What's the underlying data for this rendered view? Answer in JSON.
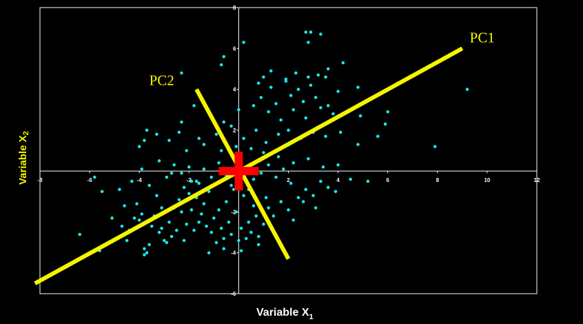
{
  "chart_data": {
    "type": "scatter",
    "title": "",
    "xlabel": {
      "text": "Variable X",
      "sub": "1"
    },
    "ylabel": {
      "text": "Variable X",
      "sub": "2"
    },
    "xlim": [
      -8,
      12
    ],
    "ylim": [
      -6,
      8
    ],
    "xticks": [
      "-8",
      "-6",
      "-4",
      "-2",
      "0",
      "2",
      "4",
      "6",
      "8",
      "10",
      "12"
    ],
    "yticks": [
      "-6",
      "-4",
      "-2",
      "2",
      "4",
      "6",
      "8"
    ],
    "grid": false,
    "colors": {
      "background": "#000000",
      "axes": "#ffffff",
      "points": "#19e6e6",
      "pc_lines": "#f5f500",
      "center_cross": "#ff0000",
      "xlabel": "#ffffff",
      "ylabel": "#f5f500"
    },
    "annotations": [
      {
        "label": "PC1",
        "line": [
          [
            -8.2,
            -5.5
          ],
          [
            9.0,
            6.0
          ]
        ],
        "label_at": [
          9.3,
          6.3
        ]
      },
      {
        "label": "PC2",
        "line": [
          [
            -1.7,
            4.0
          ],
          [
            2.0,
            -4.3
          ]
        ],
        "label_at": [
          -3.6,
          4.2
        ]
      }
    ],
    "center_cross": {
      "x": 0,
      "y": 0
    },
    "points": [
      [
        -6.4,
        -3.1
      ],
      [
        -5.6,
        -3.9
      ],
      [
        -5.5,
        -1.0
      ],
      [
        -4.6,
        -1.7
      ],
      [
        -4.4,
        -2.9
      ],
      [
        -4.2,
        -2.3
      ],
      [
        -4.1,
        -1.6
      ],
      [
        -4.0,
        -2.4
      ],
      [
        -3.9,
        -2.1
      ],
      [
        -3.8,
        -3.8
      ],
      [
        -3.8,
        -4.1
      ],
      [
        -3.7,
        -4.0
      ],
      [
        -3.6,
        -3.6
      ],
      [
        -3.5,
        -2.7
      ],
      [
        -3.4,
        -2.2
      ],
      [
        -3.3,
        -1.2
      ],
      [
        -3.1,
        -2.8
      ],
      [
        -3.0,
        -3.4
      ],
      [
        -2.9,
        -3.5
      ],
      [
        -2.8,
        -2.5
      ],
      [
        -2.7,
        -3.2
      ],
      [
        -2.6,
        -1.8
      ],
      [
        -2.5,
        -2.9
      ],
      [
        -2.4,
        -1.4
      ],
      [
        -2.3,
        -2.0
      ],
      [
        -2.2,
        -0.8
      ],
      [
        -2.1,
        -2.6
      ],
      [
        -2.0,
        -1.1
      ],
      [
        -1.9,
        -1.9
      ],
      [
        -1.8,
        -2.9
      ],
      [
        -1.7,
        -1.3
      ],
      [
        -1.6,
        -0.6
      ],
      [
        -1.5,
        -2.1
      ],
      [
        -1.4,
        -1.6
      ],
      [
        -1.3,
        -2.7
      ],
      [
        -1.2,
        -1.0
      ],
      [
        -1.1,
        -3.0
      ],
      [
        -1.0,
        -2.3
      ],
      [
        -0.9,
        -3.5
      ],
      [
        -0.8,
        -1.9
      ],
      [
        -0.7,
        -2.8
      ],
      [
        -0.6,
        -3.3
      ],
      [
        -0.5,
        -1.5
      ],
      [
        -0.4,
        -2.5
      ],
      [
        -0.3,
        -3.1
      ],
      [
        -0.2,
        -0.9
      ],
      [
        -0.1,
        -2.0
      ],
      [
        0.0,
        -3.4
      ],
      [
        0.1,
        -2.8
      ],
      [
        0.2,
        -1.2
      ],
      [
        0.3,
        -3.3
      ],
      [
        0.4,
        -2.5
      ],
      [
        0.5,
        -3.0
      ],
      [
        0.6,
        -1.7
      ],
      [
        0.7,
        -2.2
      ],
      [
        0.8,
        -3.2
      ],
      [
        1.0,
        -2.6
      ],
      [
        1.1,
        -1.3
      ],
      [
        1.2,
        -1.8
      ],
      [
        1.4,
        -2.2
      ],
      [
        -5.8,
        -0.3
      ],
      [
        -4.8,
        -0.9
      ],
      [
        -4.3,
        -0.5
      ],
      [
        -3.9,
        0.1
      ],
      [
        -3.6,
        -0.7
      ],
      [
        -3.2,
        0.5
      ],
      [
        -2.9,
        -0.3
      ],
      [
        -2.6,
        0.3
      ],
      [
        -2.3,
        -0.1
      ],
      [
        -2.0,
        0.2
      ],
      [
        -1.7,
        -0.5
      ],
      [
        -1.4,
        0.1
      ],
      [
        -1.1,
        -0.3
      ],
      [
        -0.8,
        0.4
      ],
      [
        -0.5,
        -0.2
      ],
      [
        -0.2,
        0.6
      ],
      [
        0.3,
        0.2
      ],
      [
        0.6,
        -0.4
      ],
      [
        0.9,
        -0.1
      ],
      [
        1.2,
        0.3
      ],
      [
        1.5,
        -0.3
      ],
      [
        1.8,
        0.1
      ],
      [
        2.1,
        -0.6
      ],
      [
        2.4,
        -1.3
      ],
      [
        2.7,
        -0.9
      ],
      [
        3.0,
        -1.2
      ],
      [
        3.3,
        -0.5
      ],
      [
        3.6,
        -0.8
      ],
      [
        3.9,
        -1.0
      ],
      [
        4.5,
        -0.4
      ],
      [
        5.2,
        -0.5
      ],
      [
        4.0,
        0.3
      ],
      [
        3.4,
        0.2
      ],
      [
        2.8,
        0.6
      ],
      [
        2.2,
        0.4
      ],
      [
        1.6,
        0.7
      ],
      [
        1.0,
        0.9
      ],
      [
        0.5,
        1.1
      ],
      [
        -0.1,
        1.2
      ],
      [
        -0.7,
        1.0
      ],
      [
        -1.4,
        1.3
      ],
      [
        -2.1,
        1.0
      ],
      [
        -2.8,
        1.5
      ],
      [
        -3.3,
        1.8
      ],
      [
        -3.8,
        1.5
      ],
      [
        -4.0,
        1.2
      ],
      [
        -3.7,
        2.0
      ],
      [
        -2.4,
        1.9
      ],
      [
        -1.6,
        1.6
      ],
      [
        -0.9,
        1.8
      ],
      [
        -0.3,
        2.2
      ],
      [
        0.2,
        1.6
      ],
      [
        0.7,
        2.0
      ],
      [
        1.1,
        1.4
      ],
      [
        1.6,
        1.8
      ],
      [
        2.0,
        2.0
      ],
      [
        2.5,
        1.6
      ],
      [
        3.0,
        1.9
      ],
      [
        3.5,
        1.7
      ],
      [
        4.1,
        1.9
      ],
      [
        4.8,
        1.3
      ],
      [
        5.6,
        1.7
      ],
      [
        6.0,
        2.9
      ],
      [
        5.9,
        2.3
      ],
      [
        4.9,
        2.7
      ],
      [
        3.8,
        2.8
      ],
      [
        3.3,
        3.1
      ],
      [
        2.7,
        2.6
      ],
      [
        2.2,
        3.0
      ],
      [
        1.7,
        2.5
      ],
      [
        1.2,
        2.9
      ],
      [
        0.6,
        3.2
      ],
      [
        0.0,
        3.0
      ],
      [
        -0.6,
        2.4
      ],
      [
        -1.1,
        2.7
      ],
      [
        -1.8,
        3.2
      ],
      [
        -2.3,
        2.4
      ],
      [
        0.9,
        3.6
      ],
      [
        1.5,
        3.3
      ],
      [
        2.1,
        3.7
      ],
      [
        2.6,
        3.4
      ],
      [
        3.1,
        3.6
      ],
      [
        3.6,
        3.2
      ],
      [
        4.0,
        3.9
      ],
      [
        4.8,
        4.1
      ],
      [
        3.5,
        4.6
      ],
      [
        2.9,
        4.2
      ],
      [
        2.4,
        4.0
      ],
      [
        1.9,
        4.4
      ],
      [
        1.3,
        4.1
      ],
      [
        0.8,
        4.3
      ],
      [
        1.0,
        4.6
      ],
      [
        1.3,
        4.9
      ],
      [
        1.9,
        4.5
      ],
      [
        2.3,
        4.8
      ],
      [
        2.8,
        4.6
      ],
      [
        3.2,
        4.7
      ],
      [
        3.6,
        5.0
      ],
      [
        4.2,
        5.3
      ],
      [
        2.7,
        6.8
      ],
      [
        2.9,
        6.8
      ],
      [
        3.3,
        6.7
      ],
      [
        2.8,
        6.3
      ],
      [
        0.2,
        6.3
      ],
      [
        -0.6,
        5.6
      ],
      [
        -0.7,
        5.2
      ],
      [
        -2.3,
        4.8
      ],
      [
        9.2,
        4.0
      ],
      [
        7.9,
        1.2
      ],
      [
        6.4,
        4.3
      ],
      [
        -1.2,
        -4.0
      ],
      [
        -0.6,
        -3.8
      ],
      [
        0.1,
        -3.9
      ],
      [
        0.8,
        -3.6
      ],
      [
        -1.6,
        -2.5
      ],
      [
        -2.2,
        -3.4
      ],
      [
        -3.2,
        -3.0
      ],
      [
        -4.5,
        -3.4
      ],
      [
        -5.1,
        -2.3
      ],
      [
        -4.7,
        -2.7
      ],
      [
        -2.7,
        -0.1
      ],
      [
        -3.1,
        -1.8
      ],
      [
        -1.9,
        -0.5
      ],
      [
        -0.3,
        -0.7
      ],
      [
        0.4,
        -0.9
      ],
      [
        1.7,
        -1.5
      ],
      [
        2.2,
        -2.4
      ],
      [
        2.6,
        -1.5
      ],
      [
        3.1,
        -1.8
      ],
      [
        2.0,
        -1.9
      ]
    ]
  }
}
